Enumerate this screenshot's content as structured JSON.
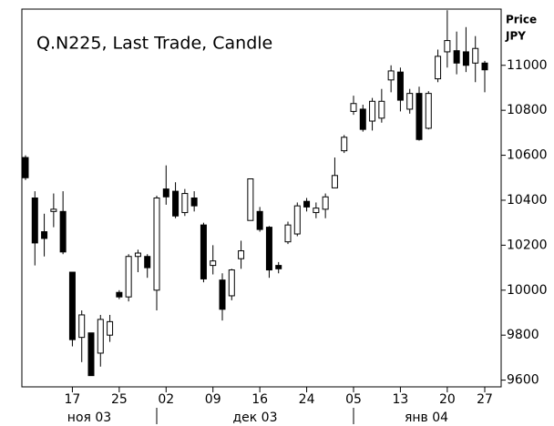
{
  "chart_data": {
    "type": "candlestick",
    "title": "Q.N225, Last Trade, Candle",
    "y_label": "Price",
    "y_unit": "JPY",
    "categories": [
      null,
      null,
      null,
      null,
      null,
      "17",
      null,
      null,
      null,
      null,
      "25",
      null,
      null,
      null,
      null,
      "02",
      null,
      null,
      null,
      null,
      "09",
      null,
      null,
      null,
      null,
      "16",
      null,
      null,
      null,
      null,
      "24",
      null,
      null,
      null,
      null,
      "05",
      null,
      null,
      null,
      null,
      "13",
      null,
      null,
      null,
      null,
      "20",
      null,
      null,
      null,
      "27"
    ],
    "months": [
      "ноя 03",
      "дек 03",
      "янв 04"
    ],
    "open": [
      10590,
      10410,
      10260,
      10350,
      10350,
      10080,
      9790,
      9810,
      9720,
      9800,
      9990,
      9970,
      10150,
      10150,
      10000,
      10450,
      10440,
      10345,
      10410,
      10290,
      10110,
      10045,
      9975,
      10140,
      10310,
      10350,
      10280,
      10110,
      10215,
      10250,
      10395,
      10345,
      10360,
      10455,
      10620,
      10795,
      10805,
      10752,
      10765,
      10935,
      10970,
      10805,
      10875,
      10720,
      10940,
      11060,
      11065,
      11060,
      11010,
      11010
    ],
    "high": [
      10600,
      10440,
      10340,
      10430,
      10440,
      10080,
      9910,
      9810,
      9890,
      9890,
      10000,
      10160,
      10180,
      10160,
      10420,
      10555,
      10480,
      10450,
      10440,
      10300,
      10200,
      10075,
      10095,
      10220,
      10495,
      10370,
      10285,
      10125,
      10305,
      10390,
      10410,
      10390,
      10430,
      10590,
      10690,
      10865,
      10825,
      10855,
      10895,
      11000,
      10990,
      10895,
      10905,
      10885,
      11070,
      11245,
      11150,
      11170,
      11130,
      11020
    ],
    "low": [
      10490,
      10110,
      10150,
      10280,
      10160,
      9750,
      9680,
      9620,
      9660,
      9770,
      9960,
      9950,
      10080,
      10055,
      9910,
      10380,
      10320,
      10330,
      10350,
      10035,
      10070,
      9865,
      9955,
      10095,
      10310,
      10260,
      10055,
      10075,
      10205,
      10240,
      10350,
      10320,
      10320,
      10455,
      10610,
      10780,
      10705,
      10710,
      10745,
      10880,
      10795,
      10785,
      10665,
      10715,
      10925,
      10990,
      10960,
      10970,
      10925,
      10880
    ],
    "close": [
      10500,
      10210,
      10230,
      10360,
      10170,
      9780,
      9890,
      9620,
      9870,
      9860,
      9970,
      10150,
      10165,
      10100,
      10410,
      10415,
      10330,
      10430,
      10375,
      10050,
      10130,
      9915,
      10090,
      10175,
      10495,
      10270,
      10090,
      10095,
      10290,
      10375,
      10370,
      10365,
      10415,
      10510,
      10680,
      10830,
      10715,
      10840,
      10840,
      10975,
      10845,
      10875,
      10670,
      10875,
      11040,
      11110,
      11010,
      11000,
      11075,
      10980
    ],
    "up_color": "#ffffff",
    "down_color": "#000000",
    "ylim": [
      9570,
      11250
    ],
    "yticks": [
      9600,
      9800,
      10000,
      10200,
      10400,
      10600,
      10800,
      11000
    ]
  }
}
